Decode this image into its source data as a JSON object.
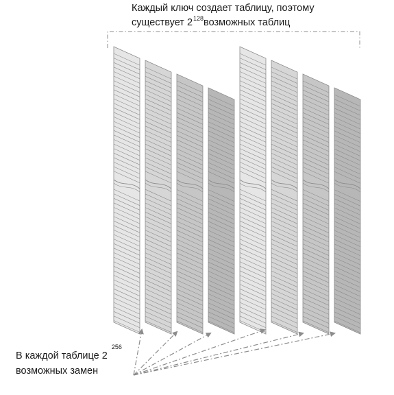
{
  "top_caption": {
    "line1": "Каждый ключ создает таблицу, поэтому",
    "line2_prefix": "существует 2",
    "line2_exponent": "128",
    "line2_suffix": "возможных таблиц"
  },
  "bottom_caption": {
    "line1_prefix": "В каждой таблице 2",
    "line1_exponent": "256",
    "line2": "возможных замен"
  },
  "colors": {
    "line": "#8c8c8c",
    "arrow": "#8c8c8c",
    "bracket": "#8c8c8c",
    "panel_shades": [
      "#e6e6e6",
      "#d6d6d6",
      "#c6c6c6",
      "#b7b7b7"
    ]
  }
}
